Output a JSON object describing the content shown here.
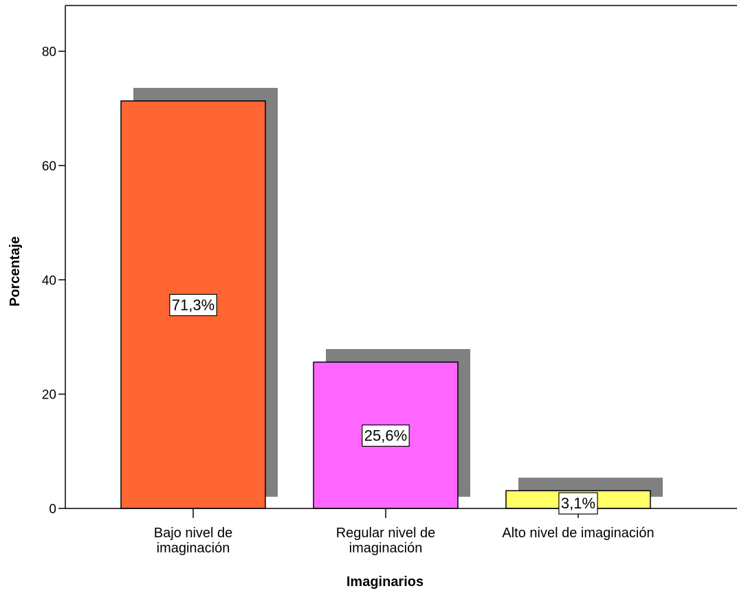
{
  "chart_data": {
    "type": "bar",
    "categories": [
      [
        "Bajo nivel de",
        "imaginación"
      ],
      [
        "Regular nivel de",
        "imaginación"
      ],
      [
        "Alto nivel de imaginación"
      ]
    ],
    "values": [
      71.3,
      25.6,
      3.1
    ],
    "data_labels": [
      "71,3%",
      "25,6%",
      "3,1%"
    ],
    "colors": [
      "#ff6633",
      "#ff66ff",
      "#ffff66"
    ],
    "shadow_color": "#808080",
    "xlabel": "Imaginarios",
    "ylabel": "Porcentaje",
    "ylim": [
      0,
      88
    ],
    "yticks": [
      0,
      20,
      40,
      60,
      80
    ],
    "grid": false,
    "legend": "none"
  }
}
